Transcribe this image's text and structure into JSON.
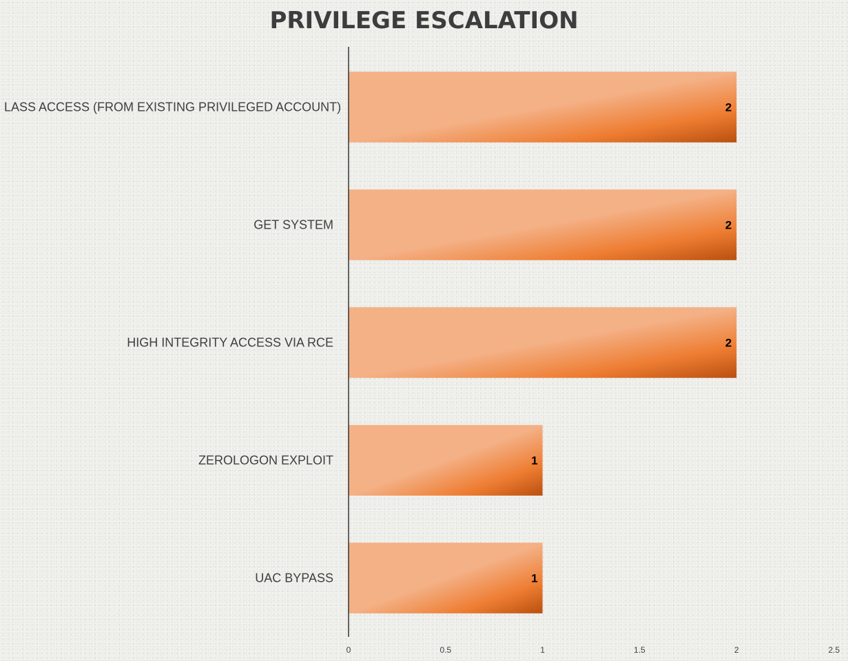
{
  "chart_data": {
    "type": "bar",
    "orientation": "horizontal",
    "title": "PRIVILEGE ESCALATION",
    "categories": [
      "LASS ACCESS (FROM EXISTING PRIVILEGED ACCOUNT)",
      "GET SYSTEM",
      "HIGH INTEGRITY ACCESS VIA RCE",
      "ZEROLOGON EXPLOIT",
      "UAC BYPASS"
    ],
    "values": [
      2,
      2,
      2,
      1,
      1
    ],
    "xlim": [
      0,
      2.5
    ],
    "xticks": [
      "0",
      "0.5",
      "1",
      "1.5",
      "2",
      "2.5"
    ],
    "data_labels": true,
    "grid": false,
    "legend": "none"
  },
  "colors": {
    "bar_light": "#f4b186",
    "bar_mid": "#ee7d32",
    "bar_dark": "#b9500f",
    "axis": "#333333",
    "text": "#404040",
    "title": "#3d3d3d"
  }
}
